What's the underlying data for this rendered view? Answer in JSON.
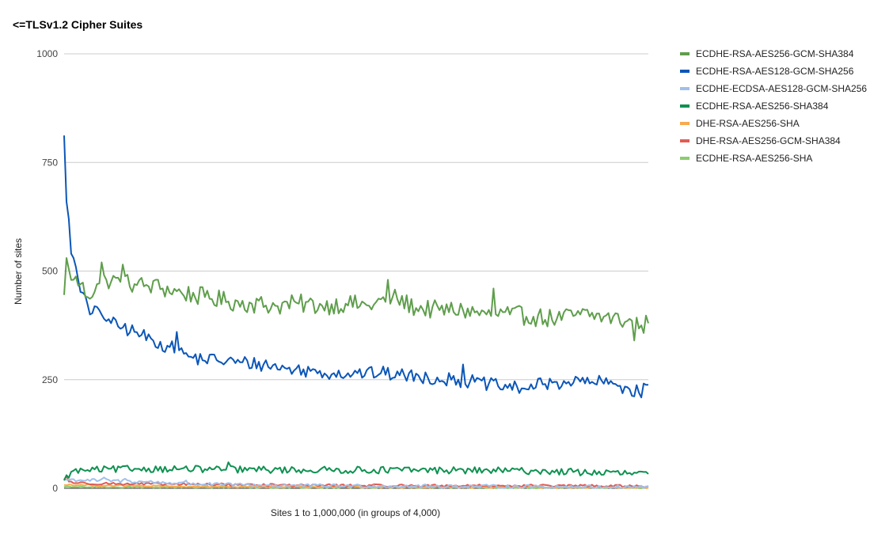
{
  "chart_data": {
    "type": "line",
    "title": "<=TLSv1.2 Cipher Suites",
    "xlabel": "Sites 1 to 1,000,000 (in groups of 4,000)",
    "ylabel": "Number of sites",
    "ylim": [
      0,
      1000
    ],
    "y_ticks": [
      {
        "value": 0,
        "label": "0"
      },
      {
        "value": 250,
        "label": "250"
      },
      {
        "value": 500,
        "label": "500"
      },
      {
        "value": 750,
        "label": "750"
      },
      {
        "value": 1000,
        "label": "1000"
      }
    ],
    "x_count": 250,
    "grid": true,
    "legend_position": "right",
    "series": [
      {
        "name": "ECDHE-RSA-AES256-GCM-SHA384",
        "color": "#5f9e4c",
        "anchors": [
          [
            0,
            445
          ],
          [
            2,
            505
          ],
          [
            4,
            480
          ],
          [
            7,
            470
          ],
          [
            10,
            440
          ],
          [
            14,
            470
          ],
          [
            18,
            480
          ],
          [
            24,
            475
          ],
          [
            30,
            470
          ],
          [
            36,
            465
          ],
          [
            42,
            460
          ],
          [
            50,
            450
          ],
          [
            60,
            440
          ],
          [
            70,
            430
          ],
          [
            80,
            425
          ],
          [
            90,
            420
          ],
          [
            100,
            425
          ],
          [
            110,
            420
          ],
          [
            120,
            425
          ],
          [
            130,
            420
          ],
          [
            140,
            440
          ],
          [
            150,
            415
          ],
          [
            160,
            410
          ],
          [
            170,
            410
          ],
          [
            180,
            400
          ],
          [
            190,
            400
          ],
          [
            200,
            395
          ],
          [
            210,
            390
          ],
          [
            220,
            400
          ],
          [
            230,
            395
          ],
          [
            240,
            385
          ],
          [
            246,
            375
          ],
          [
            249,
            380
          ]
        ],
        "noise": 22,
        "spikes": [
          [
            1,
            530
          ],
          [
            16,
            520
          ],
          [
            25,
            515
          ],
          [
            40,
            480
          ],
          [
            138,
            480
          ],
          [
            183,
            460
          ],
          [
            243,
            340
          ]
        ]
      },
      {
        "name": "ECDHE-RSA-AES128-GCM-SHA256",
        "color": "#0b56b8",
        "anchors": [
          [
            0,
            812
          ],
          [
            1,
            660
          ],
          [
            2,
            620
          ],
          [
            3,
            540
          ],
          [
            4,
            530
          ],
          [
            5,
            510
          ],
          [
            6,
            480
          ],
          [
            8,
            450
          ],
          [
            11,
            400
          ],
          [
            15,
            410
          ],
          [
            20,
            380
          ],
          [
            25,
            370
          ],
          [
            30,
            360
          ],
          [
            38,
            340
          ],
          [
            45,
            325
          ],
          [
            55,
            300
          ],
          [
            65,
            295
          ],
          [
            75,
            290
          ],
          [
            85,
            285
          ],
          [
            95,
            275
          ],
          [
            105,
            270
          ],
          [
            115,
            265
          ],
          [
            125,
            265
          ],
          [
            135,
            265
          ],
          [
            145,
            260
          ],
          [
            155,
            255
          ],
          [
            165,
            250
          ],
          [
            175,
            245
          ],
          [
            185,
            235
          ],
          [
            195,
            230
          ],
          [
            205,
            240
          ],
          [
            215,
            245
          ],
          [
            225,
            245
          ],
          [
            235,
            240
          ],
          [
            245,
            220
          ],
          [
            249,
            238
          ]
        ],
        "noise": 16,
        "spikes": [
          [
            48,
            360
          ],
          [
            170,
            285
          ]
        ]
      },
      {
        "name": "ECDHE-ECDSA-AES128-GCM-SHA256",
        "color": "#9fc0ea",
        "anchors": [
          [
            0,
            20
          ],
          [
            15,
            18
          ],
          [
            35,
            15
          ],
          [
            60,
            9
          ],
          [
            100,
            6
          ],
          [
            150,
            5
          ],
          [
            200,
            4
          ],
          [
            249,
            3
          ]
        ],
        "noise": 4,
        "spikes": [
          [
            17,
            25
          ],
          [
            26,
            22
          ],
          [
            52,
            18
          ]
        ]
      },
      {
        "name": "ECDHE-RSA-AES256-SHA384",
        "color": "#0f9151",
        "anchors": [
          [
            0,
            18
          ],
          [
            3,
            38
          ],
          [
            10,
            42
          ],
          [
            30,
            45
          ],
          [
            60,
            44
          ],
          [
            100,
            42
          ],
          [
            150,
            42
          ],
          [
            200,
            40
          ],
          [
            249,
            33
          ]
        ],
        "noise": 8,
        "spikes": [
          [
            70,
            60
          ]
        ]
      },
      {
        "name": "DHE-RSA-AES256-SHA",
        "color": "#f7aa4e",
        "anchors": [
          [
            0,
            8
          ],
          [
            50,
            4
          ],
          [
            100,
            3
          ],
          [
            249,
            2
          ]
        ],
        "noise": 2,
        "spikes": []
      },
      {
        "name": "DHE-RSA-AES256-GCM-SHA384",
        "color": "#e05c55",
        "anchors": [
          [
            0,
            20
          ],
          [
            5,
            12
          ],
          [
            30,
            10
          ],
          [
            60,
            9
          ],
          [
            100,
            7
          ],
          [
            150,
            6
          ],
          [
            200,
            6
          ],
          [
            249,
            5
          ]
        ],
        "noise": 3,
        "spikes": [
          [
            1,
            28
          ]
        ]
      },
      {
        "name": "ECDHE-RSA-AES256-SHA",
        "color": "#8ccc6e",
        "anchors": [
          [
            0,
            3
          ],
          [
            249,
            1
          ]
        ],
        "noise": 1.5,
        "spikes": []
      }
    ]
  }
}
